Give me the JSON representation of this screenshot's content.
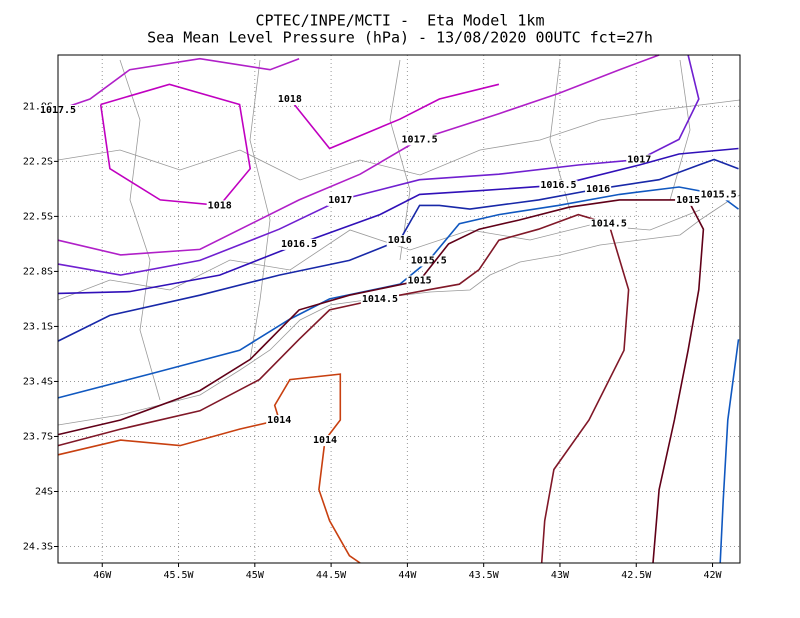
{
  "chart_data": {
    "type": "contour",
    "title": "CPTEC/INPE/MCTI -  Eta Model 1km",
    "subtitle": "Sea Mean Level Pressure (hPa) - 13/08/2020 00UTC fct=27h",
    "xlim": [
      -46.29,
      -41.82
    ],
    "ylim": [
      -24.39,
      -21.62
    ],
    "xticks": [
      {
        "value": -46,
        "label": "46W"
      },
      {
        "value": -45.5,
        "label": "45.5W"
      },
      {
        "value": -45,
        "label": "45W"
      },
      {
        "value": -44.5,
        "label": "44.5W"
      },
      {
        "value": -44,
        "label": "44W"
      },
      {
        "value": -43.5,
        "label": "43.5W"
      },
      {
        "value": -43,
        "label": "43W"
      },
      {
        "value": -42.5,
        "label": "42.5W"
      },
      {
        "value": -42,
        "label": "42W"
      }
    ],
    "yticks": [
      {
        "value": -21.9,
        "label": "21.9S"
      },
      {
        "value": -22.2,
        "label": "22.2S"
      },
      {
        "value": -22.5,
        "label": "22.5S"
      },
      {
        "value": -22.8,
        "label": "22.8S"
      },
      {
        "value": -23.1,
        "label": "23.1S"
      },
      {
        "value": -23.4,
        "label": "23.4S"
      },
      {
        "value": -23.7,
        "label": "23.7S"
      },
      {
        "value": -24,
        "label": "24S"
      },
      {
        "value": -24.3,
        "label": "24.3S"
      }
    ],
    "grid": true,
    "contours": [
      {
        "level": 1018,
        "color": "#c000c0",
        "x": [
          -46.01,
          -45.56,
          -45.1,
          -45.03,
          -45.23,
          -45.62,
          -45.95,
          -46.01,
          null,
          -44.77,
          -44.51,
          -44.05,
          -43.79,
          -43.4
        ],
        "y": [
          -21.89,
          -21.78,
          -21.89,
          -22.24,
          -22.44,
          -22.41,
          -22.24,
          -21.89,
          null,
          -21.86,
          -22.13,
          -21.97,
          -21.86,
          -21.78
        ]
      },
      {
        "level": 1017.5,
        "color": "#b020c8",
        "x": [
          -46.29,
          -45.88,
          -45.36,
          -44.71,
          -44.31,
          -43.92,
          -43.4,
          -43.01,
          -42.61,
          -42.35,
          null,
          -46.29,
          -46.08,
          -45.82,
          -45.36,
          -44.9,
          -44.71
        ],
        "y": [
          -22.63,
          -22.71,
          -22.68,
          -22.41,
          -22.27,
          -22.08,
          -21.94,
          -21.83,
          -21.7,
          -21.62,
          null,
          -21.92,
          -21.86,
          -21.7,
          -21.64,
          -21.7,
          -21.64
        ]
      },
      {
        "level": 1017,
        "color": "#7020d0",
        "x": [
          -46.29,
          -45.88,
          -45.36,
          -44.84,
          -44.44,
          -43.92,
          -43.4,
          -42.88,
          -42.48,
          -42.22,
          -42.09,
          -42.16
        ],
        "y": [
          -22.76,
          -22.82,
          -22.74,
          -22.57,
          -22.41,
          -22.3,
          -22.27,
          -22.22,
          -22.19,
          -22.08,
          -21.86,
          -21.62
        ]
      },
      {
        "level": 1016.5,
        "color": "#3010b8",
        "x": [
          -46.29,
          -45.82,
          -45.23,
          -44.71,
          -44.18,
          -43.92,
          -43.53,
          -43.01,
          -42.48,
          -42.22,
          -41.83
        ],
        "y": [
          -22.92,
          -22.91,
          -22.82,
          -22.65,
          -22.49,
          -22.38,
          -22.36,
          -22.33,
          -22.22,
          -22.16,
          -22.13
        ]
      },
      {
        "level": 1016,
        "color": "#1828a8",
        "x": [
          -46.29,
          -45.95,
          -45.36,
          -44.84,
          -44.38,
          -44.05,
          -43.92,
          -43.79,
          -43.59,
          -43.14,
          -42.75,
          -42.35,
          -42.09,
          -41.99,
          -41.83
        ],
        "y": [
          -23.18,
          -23.04,
          -22.93,
          -22.82,
          -22.74,
          -22.63,
          -22.44,
          -22.44,
          -22.46,
          -22.41,
          -22.35,
          -22.3,
          -22.22,
          -22.19,
          -22.24
        ]
      },
      {
        "level": 1015.5,
        "color": "#1058c0",
        "x": [
          -46.29,
          -45.69,
          -45.1,
          -44.77,
          -44.51,
          -44.05,
          -43.86,
          -43.66,
          -43.4,
          -43.01,
          -42.61,
          -42.22,
          -41.96,
          -41.83,
          null,
          -41.83,
          -41.9,
          -41.93,
          -41.95
        ],
        "y": [
          -23.49,
          -23.36,
          -23.23,
          -23.06,
          -22.95,
          -22.87,
          -22.74,
          -22.54,
          -22.49,
          -22.44,
          -22.38,
          -22.34,
          -22.38,
          -22.46,
          null,
          -23.17,
          -23.61,
          -24.05,
          -24.39
        ]
      },
      {
        "level": 1015,
        "color": "#600018",
        "x": [
          -46.29,
          -45.88,
          -45.36,
          -45.03,
          -44.71,
          -44.38,
          -43.92,
          -43.73,
          -43.53,
          -43.27,
          -42.94,
          -42.61,
          -42.16,
          -42.06,
          -42.09,
          -42.16,
          -42.25,
          -42.35,
          -42.39
        ],
        "y": [
          -23.69,
          -23.61,
          -23.45,
          -23.28,
          -23.01,
          -22.93,
          -22.85,
          -22.65,
          -22.57,
          -22.52,
          -22.45,
          -22.41,
          -22.41,
          -22.57,
          -22.9,
          -23.23,
          -23.61,
          -23.99,
          -24.39
        ]
      },
      {
        "level": 1014.5,
        "color": "#801828",
        "x": [
          -46.29,
          -45.88,
          -45.36,
          -44.97,
          -44.71,
          -44.51,
          -44.18,
          -43.86,
          -43.66,
          -43.53,
          -43.4,
          -43.14,
          -42.88,
          -42.68,
          -42.55,
          -42.58,
          -42.81,
          -43.04,
          -43.1,
          -43.12
        ],
        "y": [
          -23.75,
          -23.66,
          -23.56,
          -23.39,
          -23.17,
          -23.01,
          -22.95,
          -22.9,
          -22.87,
          -22.79,
          -22.63,
          -22.57,
          -22.49,
          -22.54,
          -22.9,
          -23.23,
          -23.61,
          -23.88,
          -24.16,
          -24.39
        ]
      },
      {
        "level": 1014,
        "color": "#c84010",
        "x": [
          -46.29,
          -45.88,
          -45.49,
          -45.1,
          -44.84,
          -44.87,
          -44.77,
          -44.44,
          -44.44,
          -44.54,
          -44.58,
          -44.51,
          -44.38,
          -44.31
        ],
        "y": [
          -23.8,
          -23.72,
          -23.75,
          -23.66,
          -23.61,
          -23.53,
          -23.39,
          -23.36,
          -23.61,
          -23.72,
          -23.99,
          -24.16,
          -24.35,
          -24.39
        ]
      }
    ]
  }
}
